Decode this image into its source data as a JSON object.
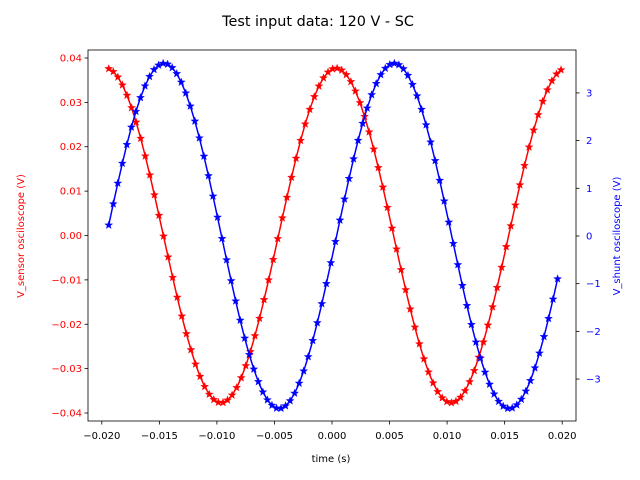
{
  "chart_data": {
    "type": "line",
    "title": "Test input data: 120 V - SC",
    "xlabel": "time (s)",
    "xlim": [
      -0.0212,
      0.0212
    ],
    "xticks": [
      -0.02,
      -0.015,
      -0.01,
      -0.005,
      0.0,
      0.005,
      0.01,
      0.015,
      0.02
    ],
    "xtick_labels": [
      "−0.020",
      "−0.015",
      "−0.010",
      "−0.005",
      "0.000",
      "0.005",
      "0.010",
      "0.015",
      "0.020"
    ],
    "grid": false,
    "marker": "star",
    "axes": {
      "left": {
        "label": "V_sensor osciloscope (V)",
        "color": "#ff0000",
        "ylim": [
          -0.0418,
          0.0418
        ],
        "ticks": [
          -0.04,
          -0.03,
          -0.02,
          -0.01,
          0.0,
          0.01,
          0.02,
          0.03,
          0.04
        ],
        "tick_labels": [
          "−0.04",
          "−0.03",
          "−0.02",
          "−0.01",
          "0.00",
          "0.01",
          "0.02",
          "0.03",
          "0.04"
        ]
      },
      "right": {
        "label": "V_shunt osciloscope (V)",
        "color": "#0000ff",
        "ylim": [
          -3.88,
          3.9
        ],
        "ticks": [
          -3,
          -2,
          -1,
          0,
          1,
          2,
          3
        ],
        "tick_labels": [
          "−3",
          "−2",
          "−1",
          "0",
          "1",
          "2",
          "3"
        ]
      }
    },
    "series": [
      {
        "axis": "left",
        "color": "#ff0000",
        "x_range": [
          -0.0194,
          0.0199
        ],
        "points": 100,
        "model": {
          "form": "sine",
          "amplitude": 0.0377,
          "frequency_hz": 50,
          "peak_time_s": 0.00035
        }
      },
      {
        "axis": "right",
        "color": "#0000ff",
        "x_range": [
          -0.0194,
          0.0196
        ],
        "points": 100,
        "model": {
          "form": "sine",
          "amplitude": 3.62,
          "frequency_hz": 50,
          "peak_time_s": -0.0146
        }
      }
    ]
  }
}
